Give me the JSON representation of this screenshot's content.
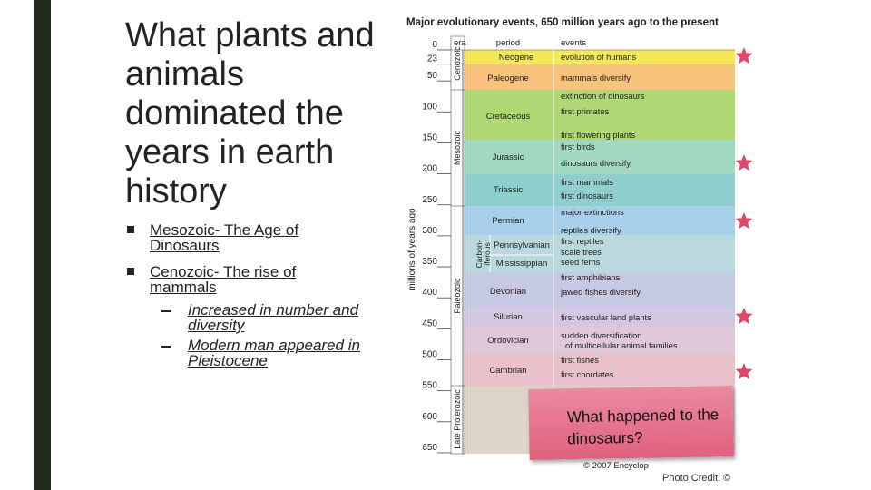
{
  "slide": {
    "title": "What plants and animals dominated the years in earth history",
    "bullets": [
      {
        "text": "Mesozoic- The Age of Dinosaurs"
      },
      {
        "text": "Cenozoic- The rise of mammals",
        "subitems": [
          "Increased in number and diversity",
          "Modern man appeared in Pleistocene"
        ]
      }
    ]
  },
  "figure": {
    "title": "Major evolutionary events, 650 million years ago to the present",
    "axis_label": "millions of years ago",
    "ticks": [
      0,
      23,
      50,
      100,
      150,
      200,
      250,
      300,
      350,
      400,
      450,
      500,
      550,
      600,
      650
    ],
    "headers": [
      "era",
      "period",
      "events"
    ],
    "eras": [
      "Cenozoic",
      "Mesozoic",
      "Paleozoic",
      "Late Proterozoic"
    ],
    "periods": [
      "Neogene",
      "Paleogene",
      "Cretaceous",
      "Jurassic",
      "Triassic",
      "Permian",
      "Pennsylvanian",
      "Mississippian",
      "Devonian",
      "Silurian",
      "Ordovician",
      "Cambrian"
    ],
    "carboniferous": [
      "Carbon-",
      "iferous"
    ],
    "events": [
      "evolution of humans",
      "mammals diversify",
      "extinction of dinosaurs",
      "first primates",
      "first flowering plants",
      "first birds",
      "dinosaurs diversify",
      "first mammals",
      "first dinosaurs",
      "major extinctions",
      "reptiles diversify",
      "first reptiles",
      "scale trees",
      "seed ferns",
      "first amphibians",
      "jawed fishes diversify",
      "first vascular land plants",
      "sudden diversification",
      "of multicellular animal families",
      "first fishes",
      "first chordates"
    ],
    "credit": "© 2007 Encyclop"
  },
  "callout": "What happened to the dinosaurs?",
  "photo_credit": "Photo Credit: ©"
}
